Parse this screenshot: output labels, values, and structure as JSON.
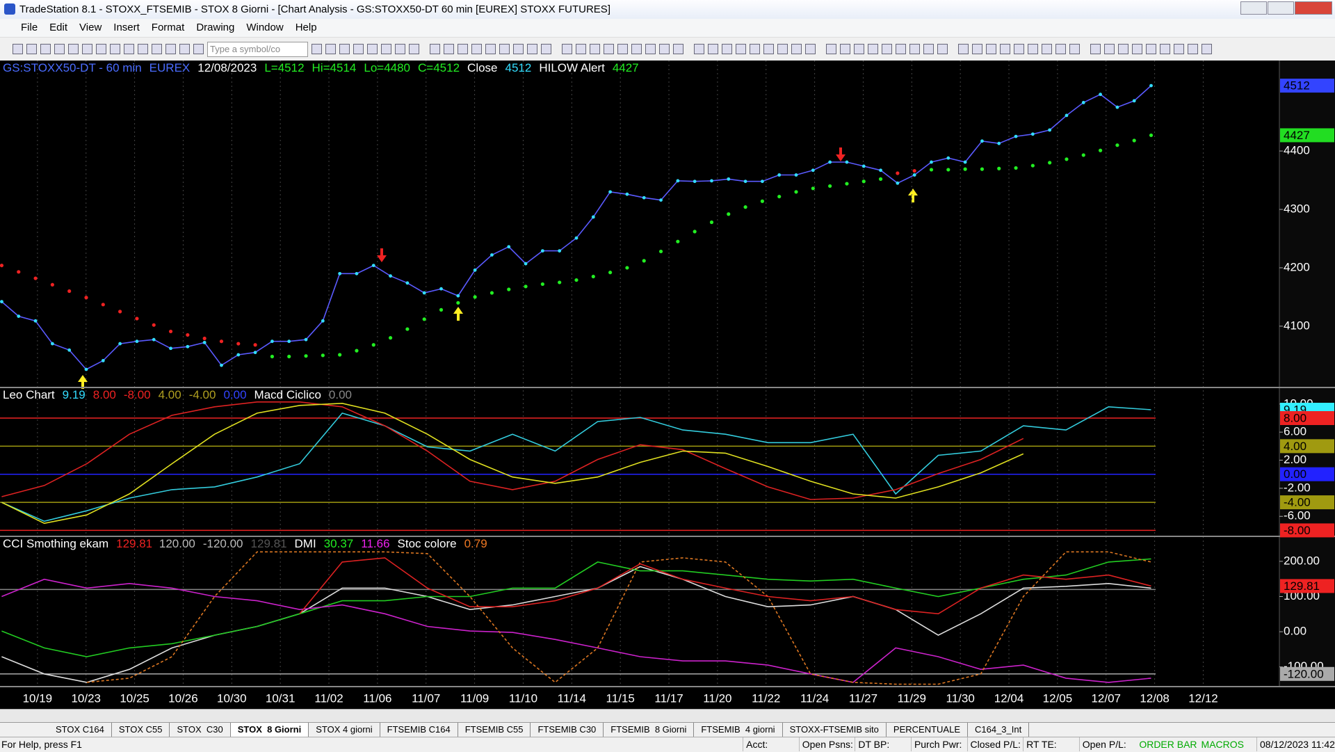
{
  "window": {
    "title": "TradeStation 8.1 - STOXX_FTSEMIB - STOX  8 Giorni - [Chart Analysis - GS:STOXX50-DT  60 min  [EUREX] STOXX FUTURES]",
    "menu": [
      "File",
      "Edit",
      "View",
      "Insert",
      "Format",
      "Drawing",
      "Window",
      "Help"
    ],
    "symbol_box": "Type a symbol/co"
  },
  "chart_data": [
    {
      "type": "line",
      "header": [
        {
          "text": "GS:STOXX50-DT - 60 min",
          "color": "#4a6cff"
        },
        {
          "text": "EUREX",
          "color": "#4a6cff"
        },
        {
          "text": "12/08/2023",
          "color": "#ffffff"
        },
        {
          "text": "L=4512",
          "color": "#22ee22"
        },
        {
          "text": "Hi=4514",
          "color": "#22ee22"
        },
        {
          "text": "Lo=4480",
          "color": "#22ee22"
        },
        {
          "text": "C=4512",
          "color": "#22ee22"
        },
        {
          "text": "Close",
          "color": "#ffffff"
        },
        {
          "text": "4512",
          "color": "#33ddff"
        },
        {
          "text": "HILOW Alert",
          "color": "#ffffff"
        },
        {
          "text": "4427",
          "color": "#22ee22"
        }
      ],
      "ylim": [
        3995,
        4555
      ],
      "yticks": [
        4100,
        4200,
        4300,
        4400
      ],
      "badges": [
        {
          "value": 4512,
          "label": "4512",
          "color": "#3344ff"
        },
        {
          "value": 4427,
          "label": "4427",
          "color": "#22dd22"
        }
      ],
      "series": [
        {
          "color": "#5a5aff",
          "dot_color": "#33ddff",
          "values": [
            4142,
            4117,
            4109,
            4070,
            4059,
            4026,
            4041,
            4070,
            4074,
            4077,
            4062,
            4065,
            4072,
            4033,
            4051,
            4055,
            4074,
            4074,
            4077,
            4109,
            4190,
            4190,
            4204,
            4186,
            4174,
            4157,
            4164,
            4152,
            4196,
            4222,
            4236,
            4207,
            4229,
            4229,
            4251,
            4287,
            4330,
            4326,
            4320,
            4316,
            4349,
            4348,
            4349,
            4352,
            4348,
            4348,
            4359,
            4359,
            4367,
            4381,
            4381,
            4374,
            4367,
            4345,
            4359,
            4381,
            4388,
            4381,
            4417,
            4413,
            4425,
            4429,
            4436,
            4461,
            4483,
            4497,
            4475,
            4486,
            4512
          ]
        },
        {
          "color": "#ee2222",
          "marker": "dot",
          "values": [
            4204,
            4193,
            4182,
            4171,
            4160,
            4149,
            4137,
            4125,
            4113,
            4102,
            4091,
            4085,
            4079,
            4074,
            4070,
            4068,
            null,
            null,
            null,
            null,
            null,
            null,
            null,
            null,
            null,
            null,
            null,
            null,
            null,
            null,
            null,
            null,
            null,
            null,
            null,
            null,
            null,
            null,
            null,
            null,
            null,
            null,
            null,
            null,
            null,
            null,
            null,
            null,
            null,
            null,
            null,
            null,
            null,
            4362,
            4366,
            null,
            null,
            null,
            null,
            null,
            null,
            null,
            null,
            null,
            null,
            null,
            null,
            null,
            null
          ]
        },
        {
          "color": "#22ee22",
          "marker": "dot",
          "values": [
            null,
            null,
            null,
            null,
            null,
            null,
            null,
            null,
            null,
            null,
            null,
            null,
            null,
            null,
            null,
            null,
            4048,
            4048,
            4049,
            4050,
            4051,
            4058,
            4068,
            4080,
            4095,
            4112,
            4128,
            4140,
            4150,
            4157,
            4163,
            4168,
            4172,
            4175,
            4179,
            4185,
            4192,
            4200,
            4212,
            4228,
            4245,
            4262,
            4278,
            4292,
            4304,
            4314,
            4322,
            4330,
            4336,
            4340,
            4344,
            4348,
            4352,
            null,
            null,
            4368,
            4368,
            4369,
            4369,
            4370,
            4371,
            4375,
            4380,
            4386,
            4393,
            4401,
            4410,
            4418,
            4427
          ]
        }
      ]
    },
    {
      "type": "line",
      "header": [
        {
          "text": "Leo Chart",
          "color": "#ffffff"
        },
        {
          "text": "9.19",
          "color": "#33ddff"
        },
        {
          "text": "8.00",
          "color": "#ee2222"
        },
        {
          "text": "-8.00",
          "color": "#ee2222"
        },
        {
          "text": "4.00",
          "color": "#b0a020"
        },
        {
          "text": "-4.00",
          "color": "#b0a020"
        },
        {
          "text": "0.00",
          "color": "#3344ff"
        },
        {
          "text": "Macd Ciclico",
          "color": "#ffffff"
        },
        {
          "text": "0.00",
          "color": "#888888"
        }
      ],
      "ylim": [
        -8.85,
        12.36
      ],
      "yticks": [
        {
          "value": 10,
          "label": "10.00"
        },
        {
          "value": 6,
          "label": "6.00"
        },
        {
          "value": 2,
          "label": "2.00"
        },
        {
          "value": -2,
          "label": "-2.00"
        },
        {
          "value": -6,
          "label": "-6.00"
        }
      ],
      "badges": [
        {
          "value": 9.19,
          "label": "9.19",
          "color": "#33eeff"
        },
        {
          "value": 8,
          "label": "8.00",
          "color": "#ee2222",
          "line": true
        },
        {
          "value": 4,
          "label": "4.00",
          "color": "#a09a10",
          "line": true
        },
        {
          "value": 0,
          "label": "0.00",
          "color": "#2222ff",
          "line": true
        },
        {
          "value": -4,
          "label": "-4.00",
          "color": "#a09a10",
          "line": true
        },
        {
          "value": -8,
          "label": "-8.00",
          "color": "#ee2222",
          "line": true
        }
      ],
      "series": [
        {
          "color": "#33ccdd",
          "values": [
            -4.0,
            -6.7,
            -5.2,
            -3.4,
            -2.2,
            -1.8,
            -0.4,
            1.5,
            8.7,
            6.9,
            3.9,
            3.3,
            5.7,
            3.3,
            7.5,
            8.1,
            6.3,
            5.7,
            4.5,
            4.5,
            5.7,
            -2.8,
            2.7,
            3.3,
            6.9,
            6.3,
            9.6,
            9.19
          ]
        },
        {
          "color": "#dd2222",
          "values": [
            -3.2,
            -1.6,
            1.5,
            5.7,
            8.4,
            9.6,
            10.3,
            10.3,
            9.6,
            6.9,
            3.3,
            -1.0,
            -2.2,
            -1.0,
            2.1,
            4.2,
            3.5,
            0.8,
            -1.8,
            -3.6,
            -3.4,
            -2.2,
            0.1,
            2.1,
            5.1,
            null,
            null,
            null
          ]
        },
        {
          "color": "#e0e020",
          "values": [
            -4.0,
            -7.0,
            -5.8,
            -2.8,
            1.5,
            5.7,
            8.7,
            9.8,
            10.1,
            8.7,
            5.7,
            2.1,
            -0.4,
            -1.3,
            -0.4,
            1.7,
            3.3,
            3.0,
            1.1,
            -1.0,
            -2.8,
            -3.4,
            -1.8,
            0.2,
            2.9,
            null,
            null,
            null
          ]
        }
      ]
    },
    {
      "type": "line",
      "header": [
        {
          "text": "CCI Smothing ekam",
          "color": "#ffffff"
        },
        {
          "text": "129.81",
          "color": "#ee2222"
        },
        {
          "text": "120.00",
          "color": "#bbbbbb"
        },
        {
          "text": "-120.00",
          "color": "#bbbbbb"
        },
        {
          "text": "129.81",
          "color": "#555555"
        },
        {
          "text": "DMI",
          "color": "#ffffff"
        },
        {
          "text": "30.37",
          "color": "#22ee22"
        },
        {
          "text": "11.66",
          "color": "#ee22ee"
        },
        {
          "text": "Stoc colore",
          "color": "#ffffff"
        },
        {
          "text": "0.79",
          "color": "#ee7722"
        }
      ],
      "ylim": [
        -156,
        271
      ],
      "yticks": [
        {
          "value": 200,
          "label": "200.00"
        },
        {
          "value": 100,
          "label": "100.00"
        },
        {
          "value": 0,
          "label": "0.00"
        },
        {
          "value": -100,
          "label": "-100.00"
        }
      ],
      "badges": [
        {
          "value": 129.81,
          "label": "129.81",
          "color": "#ee2222"
        },
        {
          "value": 120,
          "label": "120.00",
          "color": "#888888",
          "line": true,
          "hidden": true
        },
        {
          "value": -120,
          "label": "-120.00",
          "color": "#aaaaaa",
          "line": true
        }
      ],
      "series": [
        {
          "color": "#dddddd",
          "values": [
            -71,
            -120,
            -144,
            -107,
            -46,
            -10,
            15,
            51,
            124,
            124,
            100,
            63,
            76,
            100,
            124,
            185,
            149,
            100,
            71,
            76,
            100,
            63,
            -10,
            51,
            124,
            129,
            137,
            124
          ]
        },
        {
          "color": "#22cc22",
          "values": [
            2,
            -46,
            -71,
            -46,
            -34,
            -10,
            15,
            51,
            88,
            88,
            100,
            100,
            124,
            124,
            198,
            173,
            173,
            161,
            149,
            144,
            149,
            124,
            100,
            124,
            149,
            161,
            198,
            207
          ]
        },
        {
          "color": "#cc22cc",
          "values": [
            100,
            149,
            124,
            137,
            124,
            100,
            88,
            63,
            76,
            51,
            15,
            2,
            -2,
            -22,
            -46,
            -71,
            -83,
            -83,
            -95,
            -120,
            -144,
            -46,
            -71,
            -107,
            -95,
            -132,
            -144,
            -132
          ]
        },
        {
          "color": "#dd7722",
          "dash": true,
          "values": [
            null,
            null,
            -144,
            -132,
            -71,
            100,
            227,
            227,
            227,
            227,
            222,
            100,
            -46,
            -144,
            -46,
            198,
            210,
            198,
            100,
            -120,
            -144,
            -149,
            -149,
            -120,
            100,
            227,
            227,
            198
          ]
        },
        {
          "color": "#dd2222",
          "values": [
            null,
            null,
            null,
            null,
            null,
            null,
            null,
            51,
            198,
            210,
            124,
            71,
            71,
            88,
            124,
            193,
            149,
            124,
            100,
            88,
            100,
            63,
            51,
            124,
            161,
            149,
            161,
            129.81
          ]
        }
      ]
    }
  ],
  "date_axis": [
    "10/19",
    "10/23",
    "10/25",
    "10/26",
    "10/30",
    "10/31",
    "11/02",
    "11/06",
    "11/07",
    "11/09",
    "11/10",
    "11/14",
    "11/15",
    "11/17",
    "11/20",
    "11/22",
    "11/24",
    "11/27",
    "11/29",
    "11/30",
    "12/04",
    "12/05",
    "12/07",
    "12/08",
    "12/12"
  ],
  "tabs": {
    "items": [
      "STOX C164",
      "STOX C55",
      "STOX  C30",
      "STOX  8 Giorni",
      "STOX 4 giorni",
      "FTSEMIB C164",
      "FTSEMIB C55",
      "FTSEMIB C30",
      "FTSEMIB  8 Giorni",
      "FTSEMIB  4 giorni",
      "STOXX-FTSEMIB sito",
      "PERCENTUALE",
      "C164_3_Int"
    ],
    "active": 3
  },
  "status": {
    "help": "For Help, press F1",
    "fields": [
      "Acct:",
      "Open Psns:",
      "DT BP:",
      "Purch Pwr:",
      "Closed P/L:",
      "RT TE:",
      "Open P/L:"
    ],
    "order_bar": "ORDER BAR",
    "macros": "MACROS",
    "clock": "08/12/2023 11:42"
  }
}
